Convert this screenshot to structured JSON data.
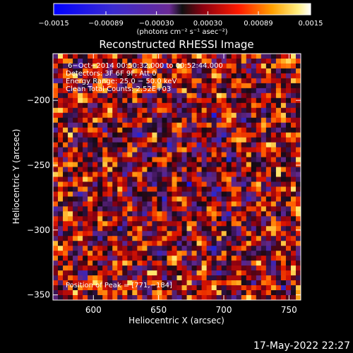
{
  "timestamp": "17-May-2022 22:27",
  "chart_data": {
    "type": "heatmap",
    "title": "Reconstructed RHESSI Image",
    "xlabel": "Heliocentric X (arcsec)",
    "ylabel": "Heliocentric Y (arcsec)",
    "xlim": [
      569,
      759
    ],
    "ylim": [
      -354,
      -164
    ],
    "xticks": [
      600,
      650,
      700,
      750
    ],
    "xtick_labels": [
      "600",
      "650",
      "700",
      "750"
    ],
    "yticks": [
      -200,
      -250,
      -300,
      -350
    ],
    "ytick_labels": [
      "−200",
      "−250",
      "−300",
      "−350"
    ],
    "colorbar": {
      "min": -0.0015,
      "max": 0.0015,
      "ticks": [
        -0.0015,
        -0.00089,
        -0.0003,
        0.0003,
        0.00089,
        0.0015
      ],
      "tick_labels": [
        "−0.0015",
        "−0.00089",
        "−0.00030",
        "0.00030",
        "0.00089",
        "0.0015"
      ],
      "label": "(photons cm⁻² s⁻¹ asec⁻²)"
    },
    "annotations": [
      "6−Oct−2014 00:50:32.000 to 00:52:44.000",
      "Detectors: 3F 6F 9F, Att 0",
      "Energy Range: 25.0 − 50.0 keV",
      "Clean    Total Counts: 2.52E+03"
    ],
    "peak_label": "Position of Peak = [771,−184]",
    "grid": false
  }
}
